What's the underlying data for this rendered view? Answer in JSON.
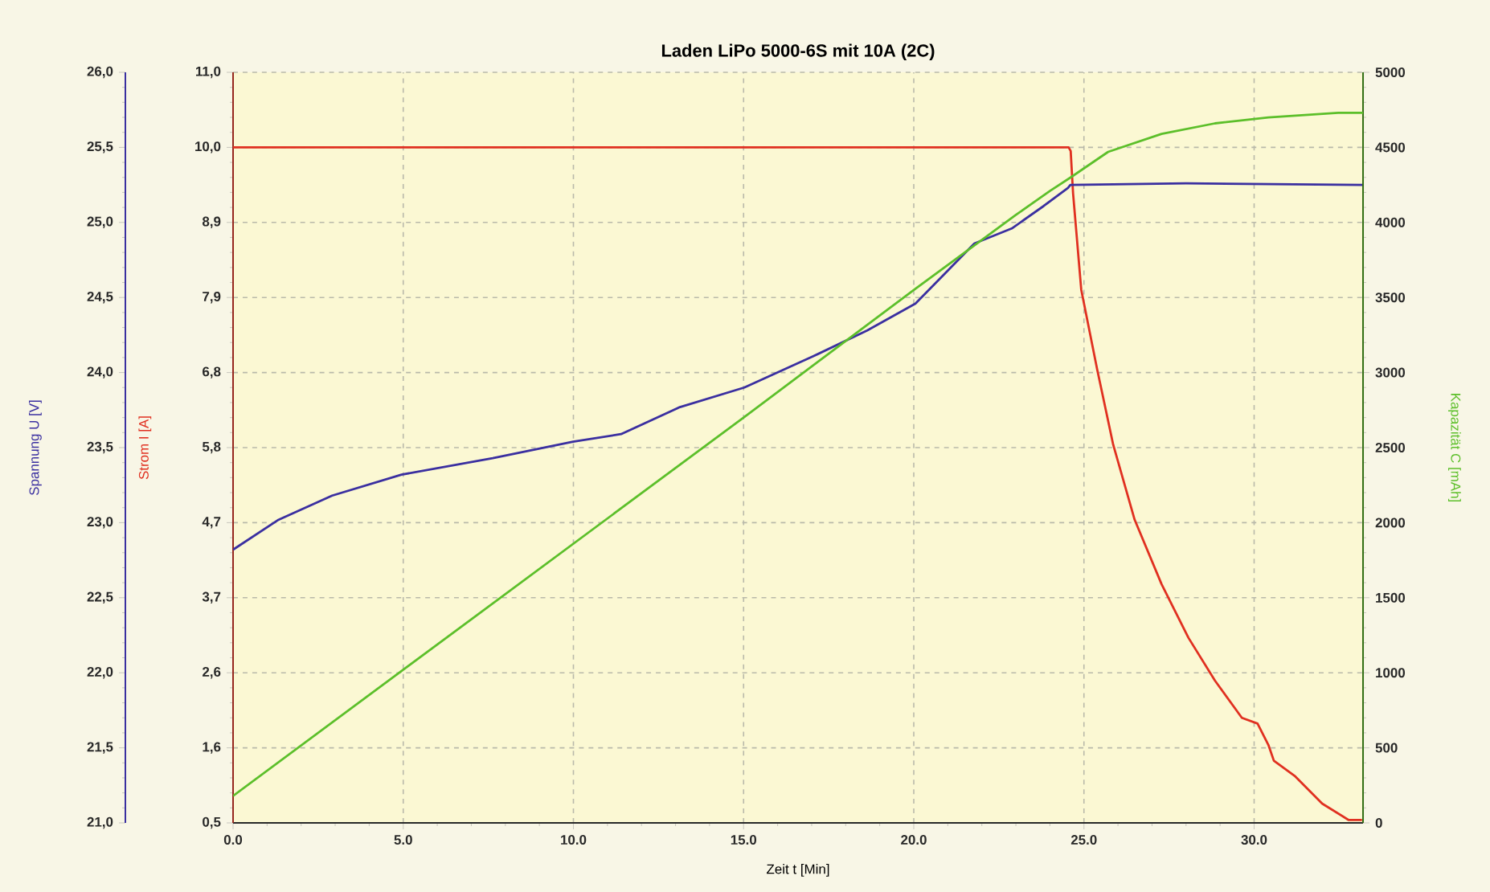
{
  "chart_data": {
    "type": "line",
    "title": "Laden LiPo 5000-6S mit 10A (2C)",
    "xlabel": "Zeit t [Min]",
    "ylabel": "Strom I [A]",
    "y2label": "Kapazität C [mAh]",
    "y3label": "Spannung U [V]",
    "xlim": [
      0,
      33.2
    ],
    "xticks": [
      {
        "value": 0,
        "label": "0.0"
      },
      {
        "value": 5,
        "label": "5.0"
      },
      {
        "value": 10,
        "label": "10.0"
      },
      {
        "value": 15,
        "label": "15.0"
      },
      {
        "value": 20,
        "label": "20.0"
      },
      {
        "value": 25,
        "label": "25.0"
      },
      {
        "value": 30,
        "label": "30.0"
      }
    ],
    "ylim": [
      0.5,
      11.0
    ],
    "yticks": [
      {
        "value": 0.5,
        "label": "0,5"
      },
      {
        "value": 1.55,
        "label": "1,6"
      },
      {
        "value": 2.6,
        "label": "2,6"
      },
      {
        "value": 3.65,
        "label": "3,7"
      },
      {
        "value": 4.7,
        "label": "4,7"
      },
      {
        "value": 5.75,
        "label": "5,8"
      },
      {
        "value": 6.8,
        "label": "6,8"
      },
      {
        "value": 7.85,
        "label": "7,9"
      },
      {
        "value": 8.9,
        "label": "8,9"
      },
      {
        "value": 9.95,
        "label": "10,0"
      },
      {
        "value": 11.0,
        "label": "11,0"
      }
    ],
    "y2lim": [
      0,
      5000
    ],
    "y2ticks": [
      0,
      500,
      1000,
      1500,
      2000,
      2500,
      3000,
      3500,
      4000,
      4500,
      5000
    ],
    "y3lim": [
      21.0,
      26.0
    ],
    "y3ticks": [
      {
        "value": 21.0,
        "label": "21,0"
      },
      {
        "value": 21.5,
        "label": "21,5"
      },
      {
        "value": 22.0,
        "label": "22,0"
      },
      {
        "value": 22.5,
        "label": "22,5"
      },
      {
        "value": 23.0,
        "label": "23,0"
      },
      {
        "value": 23.5,
        "label": "23,5"
      },
      {
        "value": 24.0,
        "label": "24,0"
      },
      {
        "value": 24.5,
        "label": "24,5"
      },
      {
        "value": 25.0,
        "label": "25,0"
      },
      {
        "value": 25.5,
        "label": "25,5"
      },
      {
        "value": 26.0,
        "label": "26,0"
      }
    ],
    "grid": true,
    "series": [
      {
        "axis": "y2",
        "color": "#5cbf2a",
        "x": [
          0,
          5,
          10,
          15,
          20,
          23,
          24,
          24.61,
          25.71,
          27.28,
          28.85,
          30.42,
          32.47,
          33.2
        ],
        "values": [
          180,
          1020,
          1860,
          2700,
          3550,
          4050,
          4210,
          4300,
          4470,
          4590,
          4660,
          4700,
          4730,
          4730
        ]
      },
      {
        "axis": "y3",
        "color": "#3a2fa0",
        "x": [
          0,
          1.34,
          2.91,
          4.95,
          7.63,
          9.99,
          11.4,
          13.13,
          15.02,
          17.06,
          18.63,
          20.05,
          21.78,
          22.88,
          23.82,
          24.53,
          24.6,
          28.0,
          33.2
        ],
        "values": [
          22.82,
          23.02,
          23.18,
          23.32,
          23.43,
          23.54,
          23.59,
          23.77,
          23.9,
          24.11,
          24.28,
          24.46,
          24.86,
          24.96,
          25.11,
          25.23,
          25.25,
          25.26,
          25.25
        ]
      },
      {
        "axis": "y",
        "color": "#e03020",
        "x": [
          0,
          24.55,
          24.61,
          24.68,
          24.92,
          25.39,
          25.86,
          26.49,
          27.28,
          28.07,
          28.85,
          29.64,
          30.1,
          30.42,
          30.58,
          31.21,
          32.0,
          32.78,
          33.17
        ],
        "values": [
          9.95,
          9.95,
          9.9,
          9.31,
          7.96,
          6.84,
          5.79,
          4.74,
          3.84,
          3.09,
          2.49,
          1.97,
          1.89,
          1.59,
          1.37,
          1.15,
          0.77,
          0.54,
          0.54
        ]
      }
    ]
  }
}
